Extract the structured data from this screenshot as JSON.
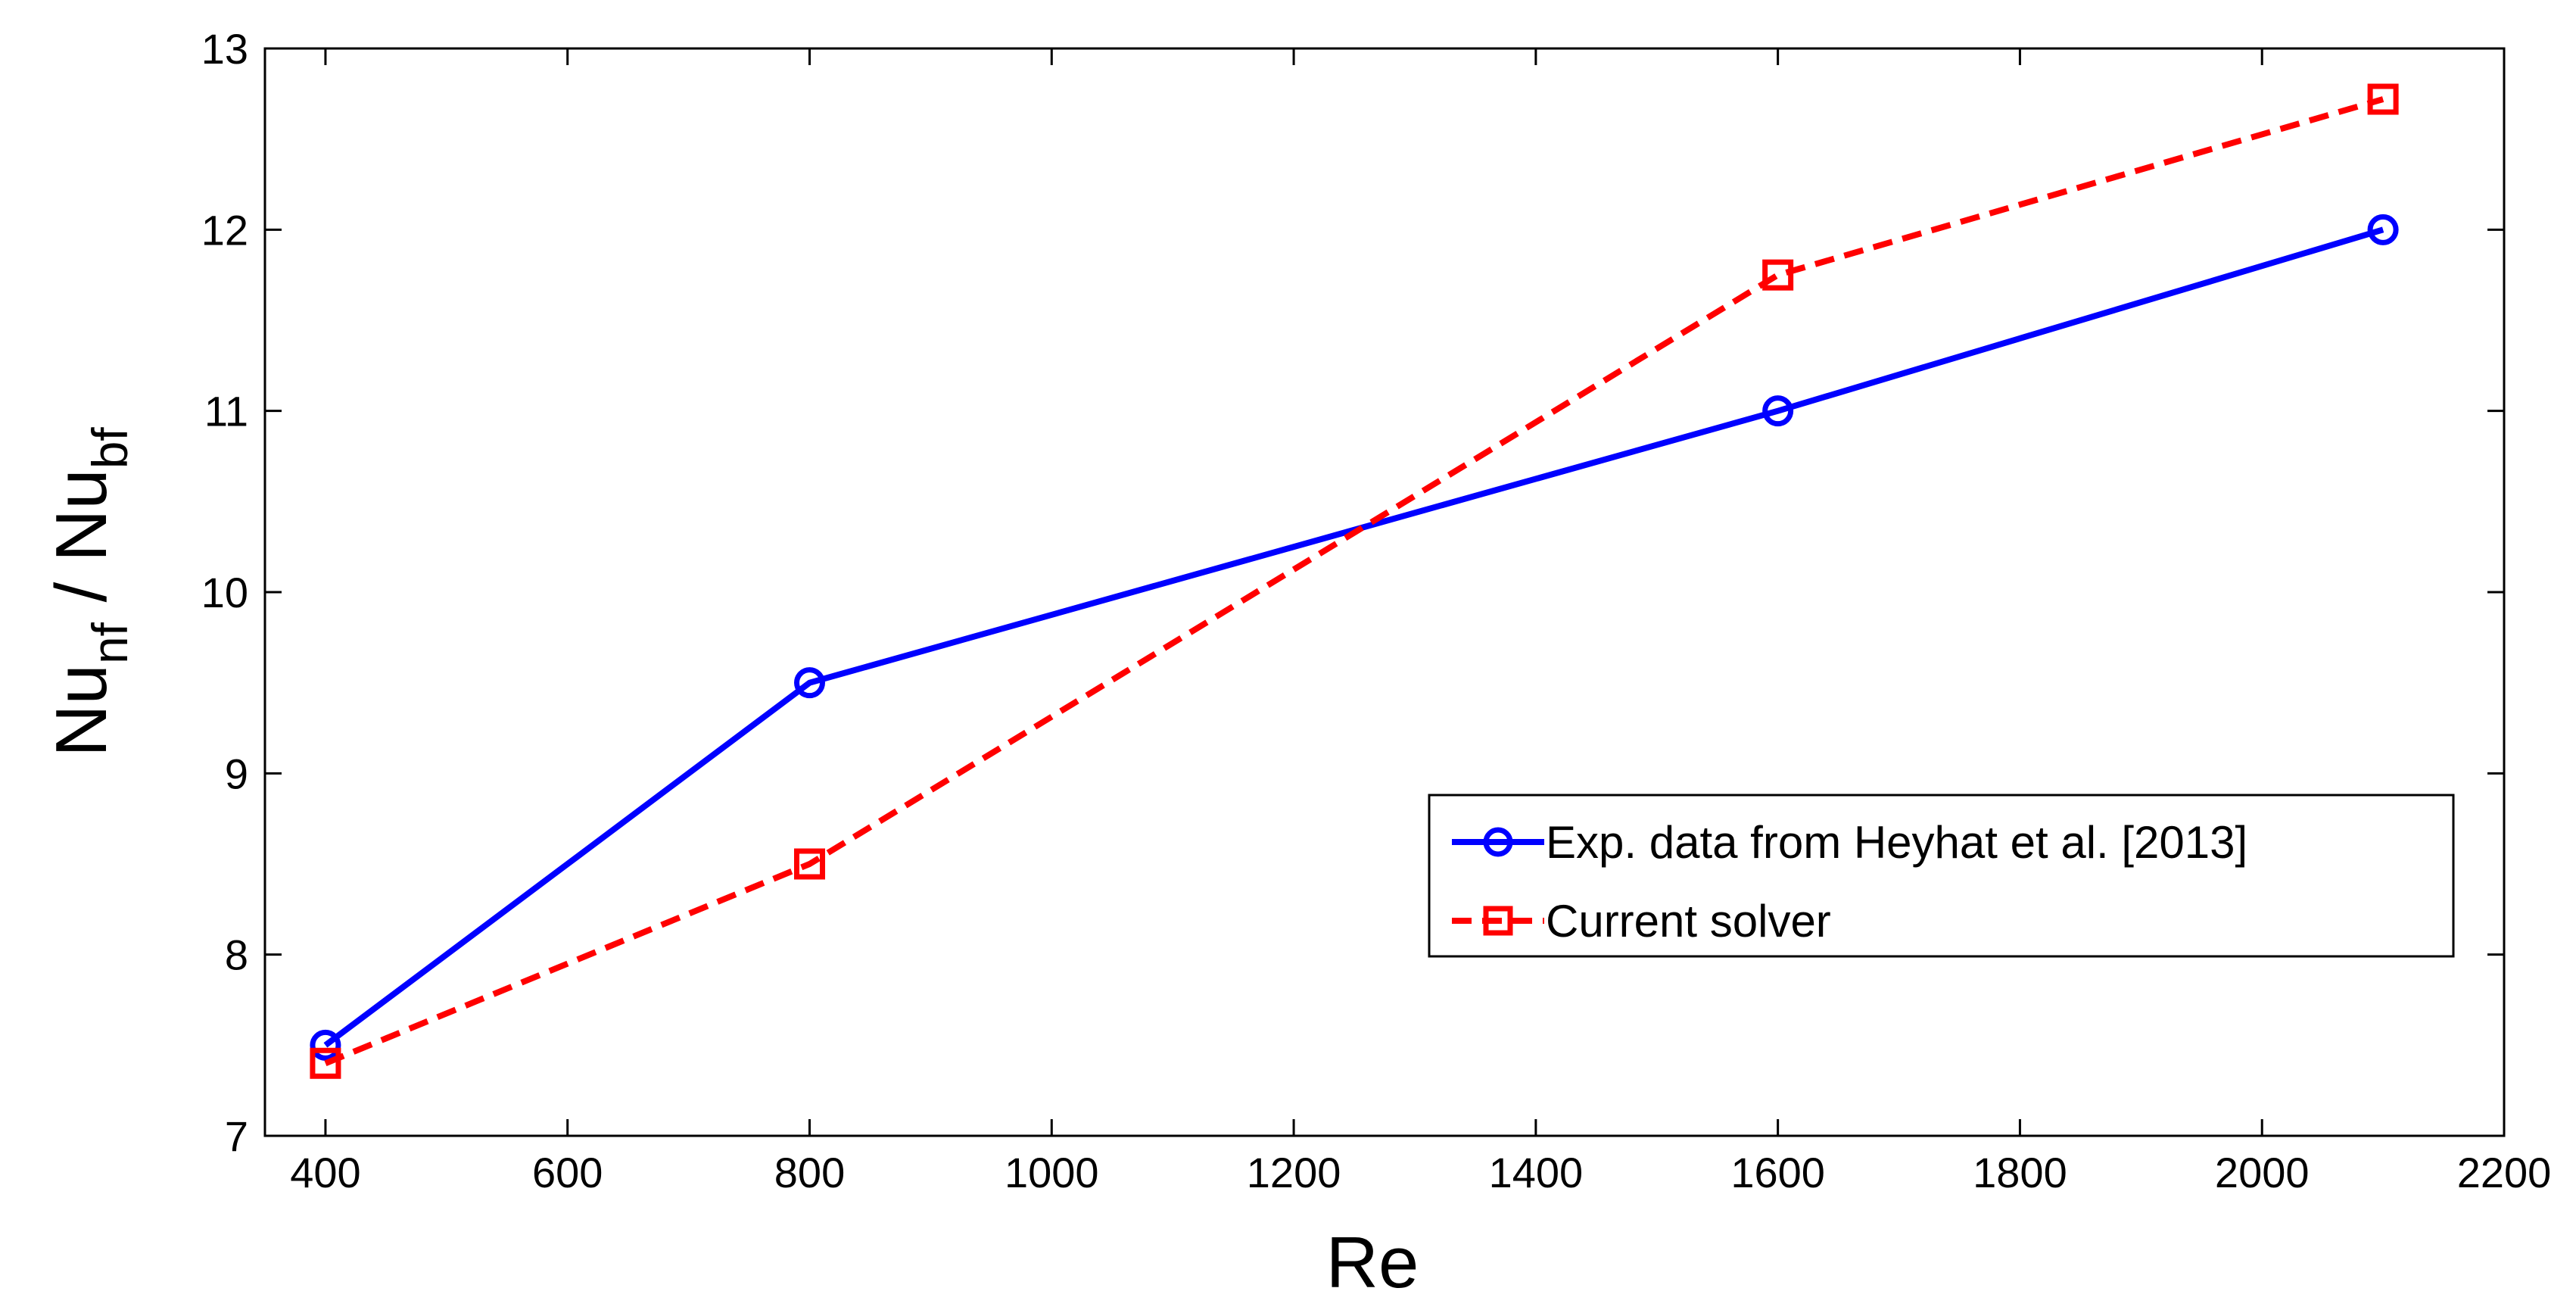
{
  "chart_data": {
    "type": "line",
    "title": "",
    "xlabel": "Re",
    "ylabel": {
      "base1": "Nu",
      "sub1": "nf",
      "sep": " / ",
      "base2": "Nu",
      "sub2": "bf"
    },
    "xlim": [
      350,
      2200
    ],
    "ylim": [
      7,
      13
    ],
    "xticks": [
      400,
      600,
      800,
      1000,
      1200,
      1400,
      1600,
      1800,
      2000,
      2200
    ],
    "yticks": [
      7,
      8,
      9,
      10,
      11,
      12,
      13
    ],
    "grid": false,
    "legend_position": "bottom-right",
    "series": [
      {
        "name": "Exp. data from Heyhat et al. [2013]",
        "color": "#0000ff",
        "line_style": "solid",
        "marker": "circle",
        "x": [
          400,
          800,
          1600,
          2100
        ],
        "y": [
          7.5,
          9.5,
          11.0,
          12.0
        ]
      },
      {
        "name": "Current solver",
        "color": "#ff0000",
        "line_style": "dashed",
        "marker": "square",
        "x": [
          400,
          800,
          1600,
          2100
        ],
        "y": [
          7.4,
          8.5,
          11.75,
          12.72
        ]
      }
    ]
  }
}
